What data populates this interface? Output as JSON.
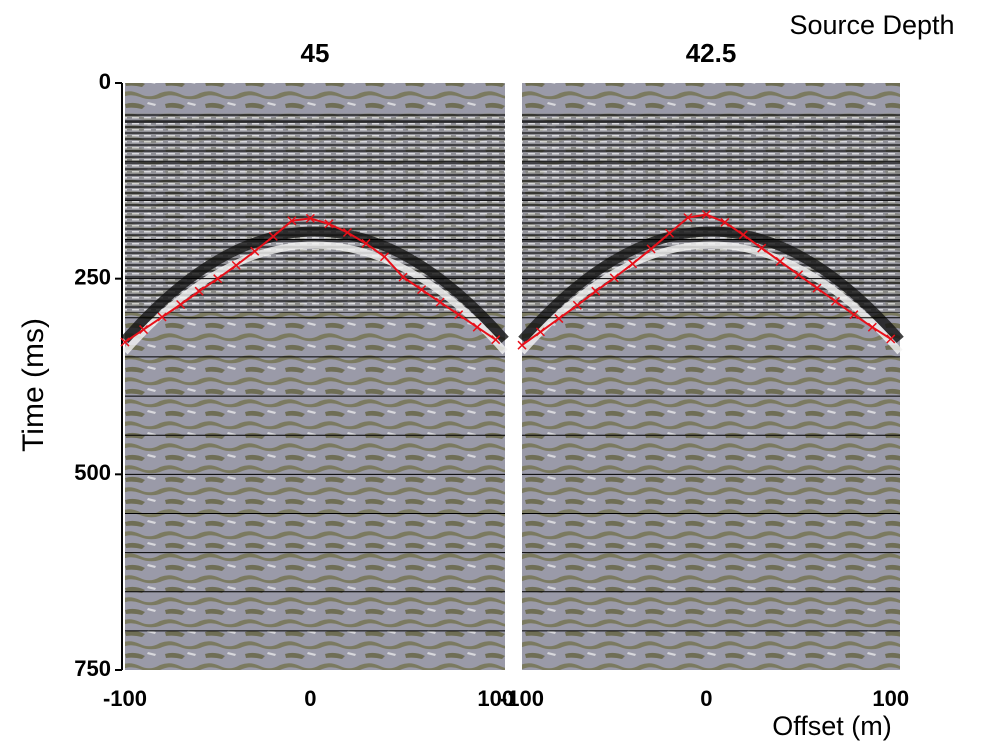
{
  "labels": {
    "source_depth": "Source Depth",
    "y_axis": "Time (ms)",
    "x_axis": "Offset (m)"
  },
  "chart_data": [
    {
      "type": "line",
      "title": "45",
      "color": "#e8101a",
      "x": [
        -100,
        -90,
        -80,
        -70,
        -60,
        -50,
        -40,
        -30,
        -20,
        -10,
        0,
        10,
        20,
        30,
        40,
        50,
        60,
        70,
        80,
        90,
        100
      ],
      "values": [
        331,
        315,
        299,
        283,
        266,
        250,
        233,
        215,
        196,
        176,
        173,
        180,
        191,
        205,
        222,
        248,
        264,
        280,
        296,
        312,
        328
      ],
      "xlim": [
        -100,
        105
      ],
      "ylim": [
        0,
        750
      ],
      "xticks": [
        -100,
        0,
        100
      ],
      "yticks": [
        0,
        250,
        500,
        750
      ],
      "grid_lines": [
        50,
        100,
        150,
        200,
        250,
        300,
        350,
        400,
        450,
        500,
        550,
        600,
        650,
        700
      ]
    },
    {
      "type": "line",
      "title": "42.5",
      "color": "#e8101a",
      "x": [
        -100,
        -90,
        -80,
        -70,
        -60,
        -50,
        -40,
        -30,
        -20,
        -10,
        0,
        10,
        20,
        30,
        40,
        50,
        60,
        70,
        80,
        90,
        100
      ],
      "values": [
        335,
        318,
        301,
        284,
        266,
        249,
        231,
        212,
        192,
        172,
        168,
        178,
        194,
        211,
        228,
        245,
        262,
        279,
        296,
        312,
        327
      ],
      "xlim": [
        -100,
        105
      ],
      "ylim": [
        0,
        750
      ],
      "xticks": [
        -100,
        0,
        100
      ],
      "yticks": [],
      "grid_lines": [
        50,
        100,
        150,
        200,
        250,
        300,
        350,
        400,
        450,
        500,
        550,
        600,
        650,
        700
      ]
    }
  ]
}
